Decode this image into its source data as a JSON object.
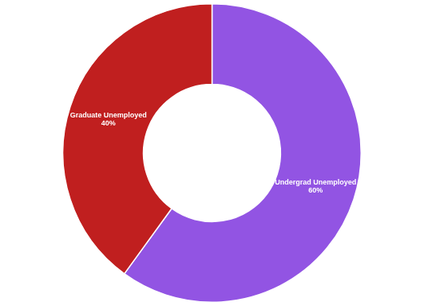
{
  "chart_data": {
    "type": "doughnut",
    "categories": [
      "Undergrad Unemployed",
      "Graduate Unemployed"
    ],
    "values": [
      60,
      40
    ],
    "value_labels": [
      "60%",
      "40%"
    ],
    "colors": [
      "#9254e3",
      "#c01f1f"
    ],
    "data_labels": true,
    "legend": false
  }
}
